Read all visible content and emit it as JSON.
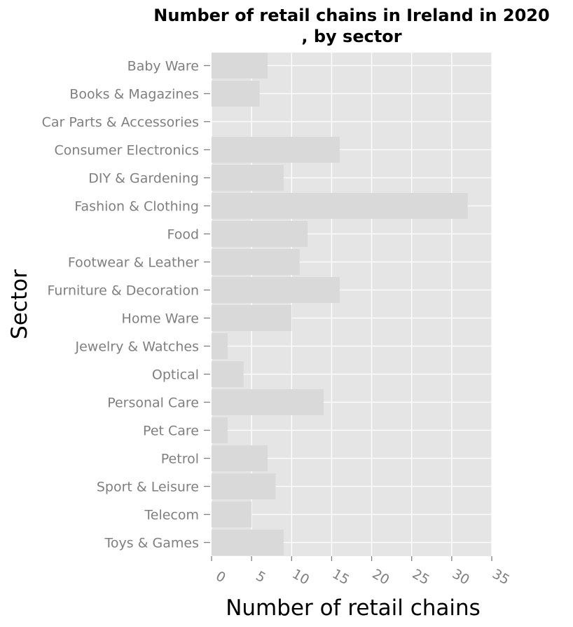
{
  "chart_data": {
    "type": "bar",
    "orientation": "horizontal",
    "title_lines": [
      "Number of retail chains in Ireland in 2020",
      ", by sector"
    ],
    "xlabel": "Number of retail chains",
    "ylabel": "Sector",
    "categories": [
      "Baby Ware",
      "Books & Magazines",
      "Car Parts & Accessories",
      "Consumer Electronics",
      "DIY & Gardening",
      "Fashion & Clothing",
      "Food",
      "Footwear & Leather",
      "Furniture & Decoration",
      "Home Ware",
      "Jewelry & Watches",
      "Optical",
      "Personal Care",
      "Pet Care",
      "Petrol",
      "Sport & Leisure",
      "Telecom",
      "Toys & Games"
    ],
    "values": [
      7,
      6,
      0,
      16,
      9,
      32,
      12,
      11,
      16,
      10,
      2,
      4,
      14,
      2,
      7,
      8,
      5,
      9
    ],
    "xlim": [
      0,
      35
    ],
    "xticks": [
      0,
      5,
      10,
      15,
      20,
      25,
      30,
      35
    ],
    "grid": true,
    "colors": {
      "panel_background": "#e5e5e5",
      "grid": "#ffffff",
      "bar": "#d9d9d9",
      "tick_label": "#7f7f7f",
      "tick_mark": "#7f7f7f",
      "text": "#000000"
    }
  }
}
